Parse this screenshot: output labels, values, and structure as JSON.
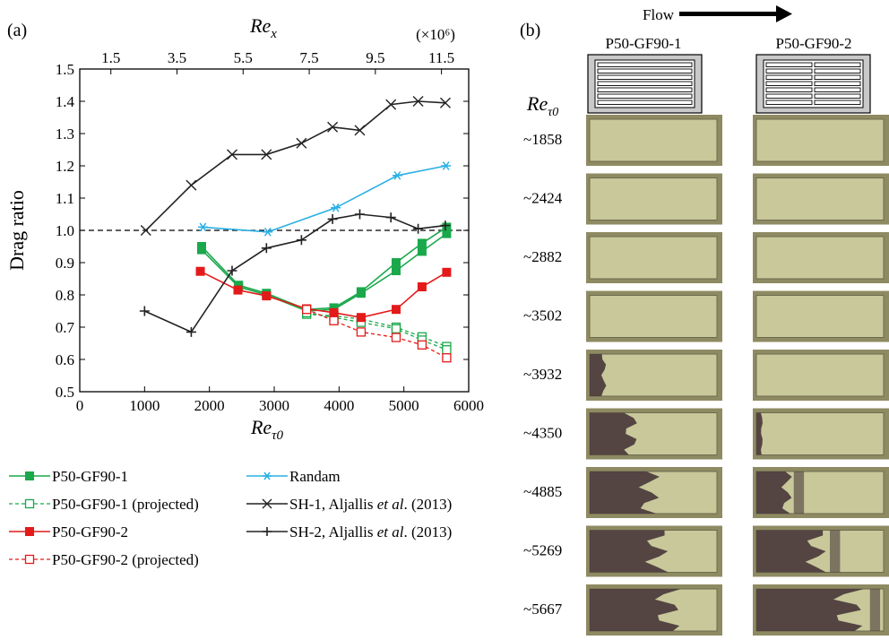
{
  "panel_a": {
    "label": "(a)"
  },
  "panel_b": {
    "label": "(b)",
    "flow_label": "Flow",
    "columns": [
      "P50-GF90-1",
      "P50-GF90-2"
    ],
    "row_header": "Reτ0",
    "rows": [
      {
        "label": "~1858",
        "dark_1": 0.0,
        "dark_2": 0.0
      },
      {
        "label": "~2424",
        "dark_1": 0.0,
        "dark_2": 0.0
      },
      {
        "label": "~2882",
        "dark_1": 0.0,
        "dark_2": 0.0
      },
      {
        "label": "~3502",
        "dark_1": 0.0,
        "dark_2": 0.0
      },
      {
        "label": "~3932",
        "dark_1": 0.13,
        "dark_2": 0.0
      },
      {
        "label": "~4350",
        "dark_1": 0.38,
        "dark_2": 0.05
      },
      {
        "label": "~4885",
        "dark_1": 0.55,
        "dark_2": 0.28
      },
      {
        "label": "~5269",
        "dark_1": 0.62,
        "dark_2": 0.55
      },
      {
        "label": "~5667",
        "dark_1": 0.72,
        "dark_2": 0.85
      }
    ],
    "colors": {
      "sample": "#c8c89a",
      "dark": "#4a3a3c",
      "frame": "#8a8a6a"
    }
  },
  "chart_data": {
    "type": "line",
    "ylabel": "Drag ratio",
    "xlabel": "Reτ0",
    "top_axis_label": "Rex",
    "top_axis_multiplier": "(×10⁶)",
    "xlim": [
      0,
      6000
    ],
    "ylim": [
      0.5,
      1.5
    ],
    "x_ticks": [
      "0",
      "1000",
      "2000",
      "3000",
      "4000",
      "5000",
      "6000"
    ],
    "y_ticks": [
      "0.5",
      "0.6",
      "0.7",
      "0.8",
      "0.9",
      "1.0",
      "1.1",
      "1.2",
      "1.3",
      "1.4",
      "1.5"
    ],
    "top_ticks": [
      {
        "label": "1.5",
        "x": 480
      },
      {
        "label": "3.5",
        "x": 1500
      },
      {
        "label": "5.5",
        "x": 2520
      },
      {
        "label": "7.5",
        "x": 3540
      },
      {
        "label": "9.5",
        "x": 4560
      },
      {
        "label": "11.5",
        "x": 5580
      }
    ],
    "reference_line": 1.0,
    "series": [
      {
        "name": "P50-GF90-1",
        "color": "#1aa84b",
        "marker": "square-filled",
        "dash": false,
        "points": [
          [
            1880,
            0.945
          ],
          [
            1880,
            0.95
          ],
          [
            2450,
            0.83
          ],
          [
            2880,
            0.805
          ],
          [
            3500,
            0.755
          ],
          [
            3920,
            0.76
          ],
          [
            4340,
            0.81
          ],
          [
            4880,
            0.9
          ],
          [
            5280,
            0.96
          ],
          [
            5660,
            1.01
          ]
        ]
      },
      {
        "name": "P50-GF90-1",
        "color": "#1aa84b",
        "marker": "square-filled",
        "dash": false,
        "points": [
          [
            1880,
            0.94
          ],
          [
            2450,
            0.825
          ],
          [
            2880,
            0.8
          ],
          [
            3500,
            0.75
          ],
          [
            3920,
            0.755
          ],
          [
            4340,
            0.805
          ],
          [
            4880,
            0.875
          ],
          [
            5280,
            0.935
          ],
          [
            5660,
            0.99
          ]
        ]
      },
      {
        "name": "P50-GF90-1 (projected)",
        "color": "#1aa84b",
        "marker": "square-open",
        "dash": true,
        "points": [
          [
            3500,
            0.74
          ],
          [
            3920,
            0.735
          ],
          [
            4340,
            0.725
          ],
          [
            4880,
            0.7
          ],
          [
            5280,
            0.67
          ],
          [
            5660,
            0.64
          ]
        ]
      },
      {
        "name": "P50-GF90-1 (projected)",
        "color": "#1aa84b",
        "marker": "square-open",
        "dash": true,
        "points": [
          [
            3500,
            0.745
          ],
          [
            3920,
            0.73
          ],
          [
            4340,
            0.715
          ],
          [
            4880,
            0.695
          ],
          [
            5280,
            0.66
          ],
          [
            5660,
            0.63
          ]
        ]
      },
      {
        "name": "P50-GF90-2",
        "color": "#e41a1a",
        "marker": "square-filled",
        "dash": false,
        "points": [
          [
            1860,
            0.873
          ],
          [
            2440,
            0.815
          ],
          [
            2880,
            0.797
          ],
          [
            3500,
            0.757
          ],
          [
            3920,
            0.745
          ],
          [
            4340,
            0.73
          ],
          [
            4880,
            0.755
          ],
          [
            5280,
            0.825
          ],
          [
            5660,
            0.87
          ]
        ]
      },
      {
        "name": "P50-GF90-2 (projected)",
        "color": "#e41a1a",
        "marker": "square-open",
        "dash": true,
        "points": [
          [
            3500,
            0.755
          ],
          [
            3920,
            0.72
          ],
          [
            4340,
            0.685
          ],
          [
            4880,
            0.668
          ],
          [
            5280,
            0.645
          ],
          [
            5660,
            0.605
          ]
        ]
      },
      {
        "name": "Randam",
        "color": "#2ab0e4",
        "marker": "asterisk",
        "dash": false,
        "points": [
          [
            1900,
            1.01
          ],
          [
            2900,
            0.995
          ],
          [
            3950,
            1.07
          ],
          [
            4900,
            1.17
          ],
          [
            5650,
            1.2
          ]
        ]
      },
      {
        "name": "SH-1, Aljallis et al. (2013)",
        "color": "#222222",
        "marker": "x",
        "dash": false,
        "points": [
          [
            1020,
            1.0
          ],
          [
            1720,
            1.14
          ],
          [
            2350,
            1.235
          ],
          [
            2880,
            1.235
          ],
          [
            3420,
            1.27
          ],
          [
            3900,
            1.32
          ],
          [
            4320,
            1.31
          ],
          [
            4800,
            1.39
          ],
          [
            5220,
            1.4
          ],
          [
            5640,
            1.395
          ]
        ]
      },
      {
        "name": "SH-2, Aljallis et al. (2013)",
        "color": "#222222",
        "marker": "plus",
        "dash": false,
        "points": [
          [
            1000,
            0.75
          ],
          [
            1720,
            0.685
          ],
          [
            2350,
            0.875
          ],
          [
            2880,
            0.945
          ],
          [
            3420,
            0.97
          ],
          [
            3900,
            1.035
          ],
          [
            4320,
            1.05
          ],
          [
            4800,
            1.04
          ],
          [
            5220,
            1.005
          ],
          [
            5640,
            1.015
          ]
        ]
      }
    ],
    "legend": {
      "placement": "bottom",
      "entries": [
        {
          "label": "P50-GF90-1",
          "color": "#1aa84b",
          "marker": "square-filled",
          "dash": false
        },
        {
          "label": "Randam",
          "color": "#2ab0e4",
          "marker": "asterisk",
          "dash": false
        },
        {
          "label": "P50-GF90-1 (projected)",
          "color": "#1aa84b",
          "marker": "square-open",
          "dash": true
        },
        {
          "label": "SH-1, Aljallis et al. (2013)",
          "color": "#222222",
          "marker": "x",
          "dash": false,
          "italic_part": "et al"
        },
        {
          "label": "P50-GF90-2",
          "color": "#e41a1a",
          "marker": "square-filled",
          "dash": false
        },
        {
          "label": "SH-2, Aljallis et al. (2013)",
          "color": "#222222",
          "marker": "plus",
          "dash": false,
          "italic_part": "et al"
        },
        {
          "label": "P50-GF90-2 (projected)",
          "color": "#e41a1a",
          "marker": "square-open",
          "dash": true
        }
      ]
    }
  }
}
